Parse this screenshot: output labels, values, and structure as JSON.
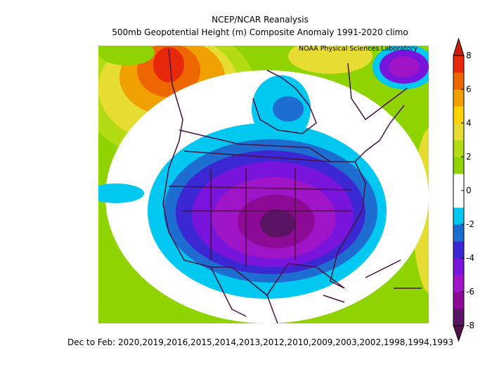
{
  "header": {
    "title": "NCEP/NCAR Reanalysis",
    "subtitle": "500mb Geopotential Height (m) Composite Anomaly 1991-2020 climo",
    "credit": "NOAA Physical Sciences Laboratory"
  },
  "footer": "Dec to Feb: 2020,2019,2016,2015,2014,2013,2012,2010,2009,2003,2002,1998,1994,1993",
  "colorbar": {
    "ticks": [
      8,
      6,
      4,
      2,
      0,
      -2,
      -4,
      -6,
      -8
    ],
    "colors": [
      "#5a1464",
      "#8c0a96",
      "#a014c8",
      "#7814dc",
      "#3c28d2",
      "#1e6ed2",
      "#00c8f0",
      "#ffffff",
      "#ffffff",
      "#8fd400",
      "#b4dc14",
      "#e6dc32",
      "#ffd200",
      "#f0a000",
      "#ee6600",
      "#e8280a"
    ],
    "extend_colors": [
      "#50104a",
      "#c81e0a"
    ]
  }
}
